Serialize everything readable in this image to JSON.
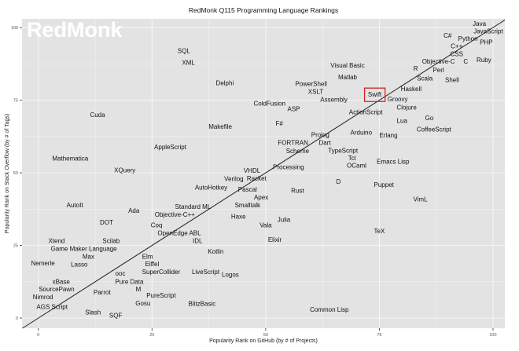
{
  "chart_data": {
    "type": "scatter",
    "title": "RedMonk Q115 Programming Language Rankings",
    "xlabel": "Popularity Rank on GitHub (by # of Projects)",
    "ylabel": "Popularity Rank on Stack Overflow (by # of Tags)",
    "xlim": [
      -3.6,
      102.6
    ],
    "ylim": [
      -3.5,
      103
    ],
    "xticks": [
      0,
      25,
      50,
      75,
      100
    ],
    "yticks": [
      0,
      25,
      50,
      75,
      100
    ],
    "grid": true,
    "reference_line": "y = x",
    "highlight": "Swift",
    "colors": {
      "background": "#e3e3e3",
      "grid": "#f5f5f5",
      "highlight": "#d42020",
      "logo": "#ffffff"
    },
    "logo_text": "RedMonk",
    "points": [
      {
        "label": "Java",
        "x": 97,
        "y": 99
      },
      {
        "label": "JavaScript",
        "x": 99,
        "y": 98
      },
      {
        "label": "PHP",
        "x": 98,
        "y": 96
      },
      {
        "label": "Python",
        "x": 95,
        "y": 95
      },
      {
        "label": "C++",
        "x": 92,
        "y": 95
      },
      {
        "label": "CSS",
        "x": 92,
        "y": 93
      },
      {
        "label": "C#",
        "x": 90,
        "y": 97
      },
      {
        "label": "Objective-C",
        "x": 88,
        "y": 91
      },
      {
        "label": "C",
        "x": 94,
        "y": 90
      },
      {
        "label": "Ruby",
        "x": 98,
        "y": 89
      },
      {
        "label": "R",
        "x": 83,
        "y": 86
      },
      {
        "label": "Perl",
        "x": 88,
        "y": 85
      },
      {
        "label": "Scala",
        "x": 85,
        "y": 83
      },
      {
        "label": "Shell",
        "x": 91,
        "y": 82
      },
      {
        "label": "Haskell",
        "x": 82,
        "y": 79
      },
      {
        "label": "Groovy",
        "x": 79,
        "y": 75
      },
      {
        "label": "Clojure",
        "x": 81,
        "y": 73
      },
      {
        "label": "SQL",
        "x": 32,
        "y": 92
      },
      {
        "label": "XML",
        "x": 33,
        "y": 88
      },
      {
        "label": "Delphi",
        "x": 41,
        "y": 81
      },
      {
        "label": "Visual Basic",
        "x": 68,
        "y": 87
      },
      {
        "label": "Matlab",
        "x": 68,
        "y": 83
      },
      {
        "label": "PowerShell",
        "x": 60,
        "y": 80
      },
      {
        "label": "XSLT",
        "x": 61,
        "y": 78
      },
      {
        "label": "Assembly",
        "x": 65,
        "y": 76
      },
      {
        "label": "Swift",
        "x": 74,
        "y": 77
      },
      {
        "label": "ColdFusion",
        "x": 51,
        "y": 74
      },
      {
        "label": "ASP",
        "x": 56,
        "y": 72
      },
      {
        "label": "ActionScript",
        "x": 72,
        "y": 71
      },
      {
        "label": "Lua",
        "x": 80,
        "y": 68
      },
      {
        "label": "Go",
        "x": 86,
        "y": 69
      },
      {
        "label": "Cuda",
        "x": 13,
        "y": 70
      },
      {
        "label": "Makefile",
        "x": 40,
        "y": 66
      },
      {
        "label": "F#",
        "x": 53,
        "y": 67
      },
      {
        "label": "CoffeeScript",
        "x": 87,
        "y": 65
      },
      {
        "label": "Prolog",
        "x": 62,
        "y": 62
      },
      {
        "label": "Dart",
        "x": 63,
        "y": 61
      },
      {
        "label": "Arduino",
        "x": 71,
        "y": 64
      },
      {
        "label": "Erlang",
        "x": 77,
        "y": 63
      },
      {
        "label": "FORTRAN",
        "x": 56,
        "y": 60
      },
      {
        "label": "Scheme",
        "x": 57,
        "y": 58
      },
      {
        "label": "TypeScript",
        "x": 67,
        "y": 57
      },
      {
        "label": "Tcl",
        "x": 69,
        "y": 56
      },
      {
        "label": "AppleScript",
        "x": 29,
        "y": 59
      },
      {
        "label": "OCaml",
        "x": 70,
        "y": 53
      },
      {
        "label": "Emacs Lisp",
        "x": 78,
        "y": 54
      },
      {
        "label": "Mathematica",
        "x": 7,
        "y": 55
      },
      {
        "label": "Processing",
        "x": 55,
        "y": 52
      },
      {
        "label": "XQuery",
        "x": 19,
        "y": 51
      },
      {
        "label": "VHDL",
        "x": 47,
        "y": 50
      },
      {
        "label": "Racket",
        "x": 48,
        "y": 49
      },
      {
        "label": "Verilog",
        "x": 43,
        "y": 48
      },
      {
        "label": "D",
        "x": 66,
        "y": 47
      },
      {
        "label": "Puppet",
        "x": 76,
        "y": 46
      },
      {
        "label": "AutoHotkey",
        "x": 38,
        "y": 45
      },
      {
        "label": "Rust",
        "x": 57,
        "y": 44
      },
      {
        "label": "Pascal",
        "x": 46,
        "y": 43
      },
      {
        "label": "Apex",
        "x": 49,
        "y": 42
      },
      {
        "label": "Standard ML",
        "x": 34,
        "y": 38
      },
      {
        "label": "Smalltalk",
        "x": 46,
        "y": 40
      },
      {
        "label": "VimL",
        "x": 84,
        "y": 41
      },
      {
        "label": "AutoIt",
        "x": 8,
        "y": 39
      },
      {
        "label": "Ada",
        "x": 21,
        "y": 37
      },
      {
        "label": "Objective-C++",
        "x": 30,
        "y": 36
      },
      {
        "label": "Haxe",
        "x": 44,
        "y": 35
      },
      {
        "label": "Julia",
        "x": 54,
        "y": 34
      },
      {
        "label": "DOT",
        "x": 15,
        "y": 33
      },
      {
        "label": "Vala",
        "x": 50,
        "y": 32
      },
      {
        "label": "Coq",
        "x": 26,
        "y": 31
      },
      {
        "label": "OpenEdge ABL",
        "x": 31,
        "y": 29
      },
      {
        "label": "IDL",
        "x": 35,
        "y": 28
      },
      {
        "label": "TeX",
        "x": 75,
        "y": 30
      },
      {
        "label": "Elixir",
        "x": 52,
        "y": 27
      },
      {
        "label": "Scilab",
        "x": 16,
        "y": 26
      },
      {
        "label": "Xtend",
        "x": 4,
        "y": 25
      },
      {
        "label": "Game Maker Language",
        "x": 10,
        "y": 24
      },
      {
        "label": "Max",
        "x": 11,
        "y": 22
      },
      {
        "label": "Kotlin",
        "x": 39,
        "y": 23
      },
      {
        "label": "Lasso",
        "x": 9,
        "y": 20
      },
      {
        "label": "Elm",
        "x": 24,
        "y": 21
      },
      {
        "label": "Nemerle",
        "x": 1,
        "y": 19
      },
      {
        "label": "Eiffel",
        "x": 25,
        "y": 18
      },
      {
        "label": "SuperCollider",
        "x": 27,
        "y": 17
      },
      {
        "label": "LiveScript",
        "x": 37,
        "y": 16
      },
      {
        "label": "Logos",
        "x": 42,
        "y": 15
      },
      {
        "label": "ooc",
        "x": 18,
        "y": 14
      },
      {
        "label": "Pure Data",
        "x": 20,
        "y": 13
      },
      {
        "label": "M",
        "x": 22,
        "y": 11
      },
      {
        "label": "xBase",
        "x": 5,
        "y": 12
      },
      {
        "label": "SourcePawn",
        "x": 4,
        "y": 10
      },
      {
        "label": "Nimrod",
        "x": 1,
        "y": 8
      },
      {
        "label": "Parrot",
        "x": 14,
        "y": 9
      },
      {
        "label": "PureScript",
        "x": 27,
        "y": 7
      },
      {
        "label": "Gosu",
        "x": 23,
        "y": 6
      },
      {
        "label": "AGS Script",
        "x": 3,
        "y": 4
      },
      {
        "label": "BlitzBasic",
        "x": 36,
        "y": 5
      },
      {
        "label": "Slash",
        "x": 12,
        "y": 2
      },
      {
        "label": "SQF",
        "x": 17,
        "y": 1
      },
      {
        "label": "Common Lisp",
        "x": 64,
        "y": 3
      }
    ]
  }
}
